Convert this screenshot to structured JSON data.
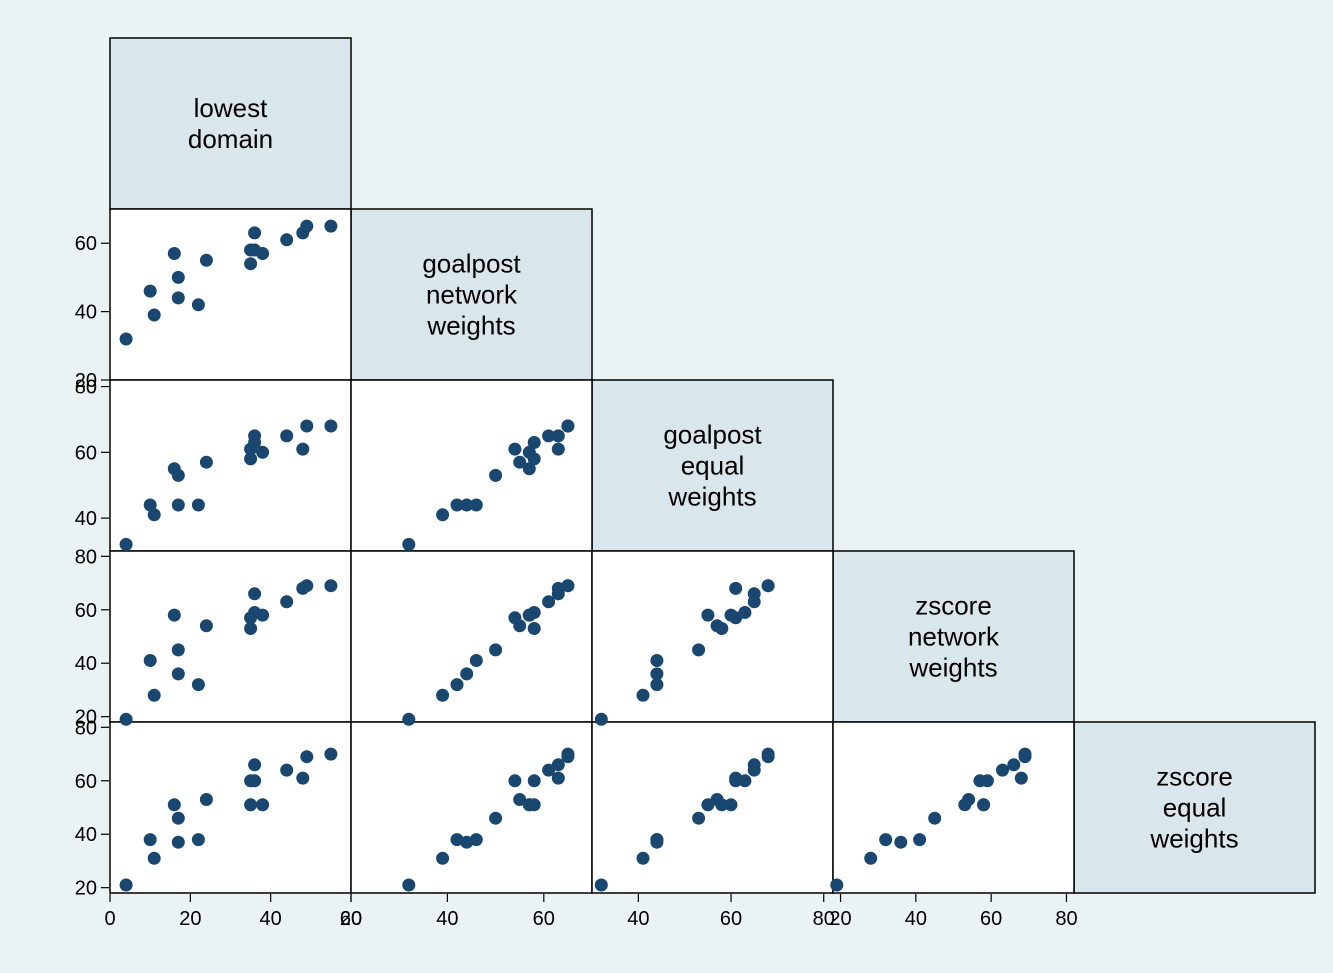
{
  "chart_data": {
    "type": "scatter",
    "subtype": "scatter-matrix-lower-half",
    "variables": [
      {
        "label": [
          "lowest",
          "domain"
        ],
        "ticks": [
          0,
          20,
          40,
          60
        ],
        "range": [
          0,
          60
        ]
      },
      {
        "label": [
          "goalpost",
          "network",
          "weights"
        ],
        "ticks": [
          20,
          40,
          60
        ],
        "range": [
          20,
          70
        ]
      },
      {
        "label": [
          "goalpost",
          "equal",
          "weights"
        ],
        "ticks": [
          40,
          60,
          80
        ],
        "range": [
          30,
          82
        ]
      },
      {
        "label": [
          "zscore",
          "network",
          "weights"
        ],
        "ticks": [
          20,
          40,
          60,
          80
        ],
        "range": [
          18,
          82
        ]
      },
      {
        "label": [
          "zscore",
          "equal",
          "weights"
        ],
        "ticks": [
          20,
          40,
          60,
          80
        ],
        "range": [
          18,
          82
        ]
      }
    ],
    "observations": [
      [
        4,
        32,
        32,
        19,
        21
      ],
      [
        10,
        46,
        44,
        41,
        38
      ],
      [
        11,
        39,
        41,
        28,
        31
      ],
      [
        16,
        57,
        55,
        58,
        51
      ],
      [
        17,
        50,
        53,
        45,
        46
      ],
      [
        17,
        44,
        44,
        36,
        37
      ],
      [
        22,
        42,
        44,
        32,
        38
      ],
      [
        24,
        55,
        57,
        54,
        53
      ],
      [
        35,
        58,
        58,
        53,
        51
      ],
      [
        35,
        54,
        61,
        57,
        60
      ],
      [
        36,
        63,
        65,
        66,
        66
      ],
      [
        36,
        58,
        63,
        59,
        60
      ],
      [
        38,
        57,
        60,
        58,
        51
      ],
      [
        44,
        61,
        65,
        63,
        64
      ],
      [
        48,
        63,
        61,
        68,
        61
      ],
      [
        49,
        65,
        68,
        69,
        69
      ],
      [
        55,
        65,
        68,
        69,
        70
      ]
    ],
    "marker_color": "#1a476f",
    "grid": false
  }
}
